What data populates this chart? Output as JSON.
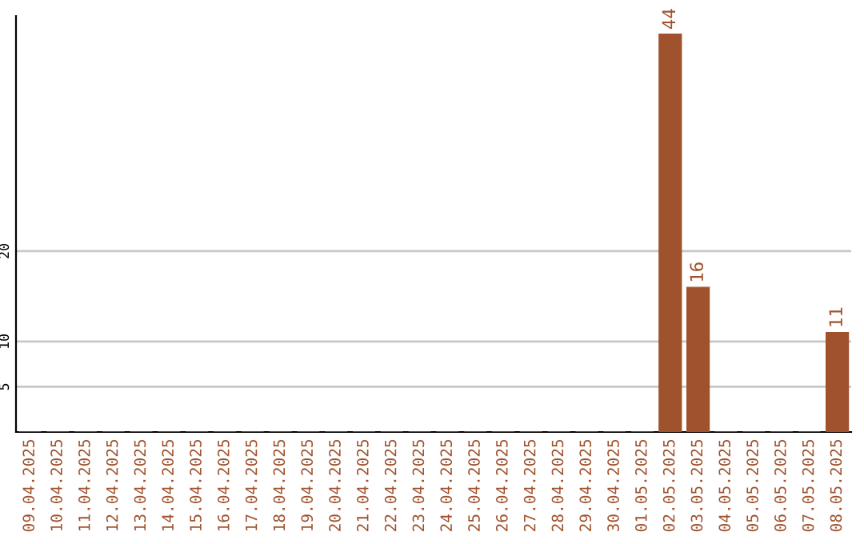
{
  "chart_data": {
    "type": "bar",
    "categories": [
      "09.04.2025",
      "10.04.2025",
      "11.04.2025",
      "12.04.2025",
      "13.04.2025",
      "14.04.2025",
      "15.04.2025",
      "16.04.2025",
      "17.04.2025",
      "18.04.2025",
      "19.04.2025",
      "20.04.2025",
      "21.04.2025",
      "22.04.2025",
      "23.04.2025",
      "24.04.2025",
      "25.04.2025",
      "26.04.2025",
      "27.04.2025",
      "28.04.2025",
      "29.04.2025",
      "30.04.2025",
      "01.05.2025",
      "02.05.2025",
      "03.05.2025",
      "04.05.2025",
      "05.05.2025",
      "06.05.2025",
      "07.05.2025",
      "08.05.2025"
    ],
    "values": [
      0,
      0,
      0,
      0,
      0,
      0,
      0,
      0,
      0,
      0,
      0,
      0,
      0,
      0,
      0,
      0,
      0,
      0,
      0,
      0,
      0,
      0,
      0,
      44,
      16,
      0,
      0,
      0,
      0,
      11
    ],
    "value_labels": [
      null,
      null,
      null,
      null,
      null,
      null,
      null,
      null,
      null,
      null,
      null,
      null,
      null,
      null,
      null,
      null,
      null,
      null,
      null,
      null,
      null,
      null,
      null,
      "44",
      "16",
      null,
      null,
      null,
      null,
      "11"
    ],
    "color": "#a0522d",
    "ylim": [
      0,
      46
    ],
    "yticks": [
      5,
      10,
      20
    ],
    "grid": "y"
  }
}
